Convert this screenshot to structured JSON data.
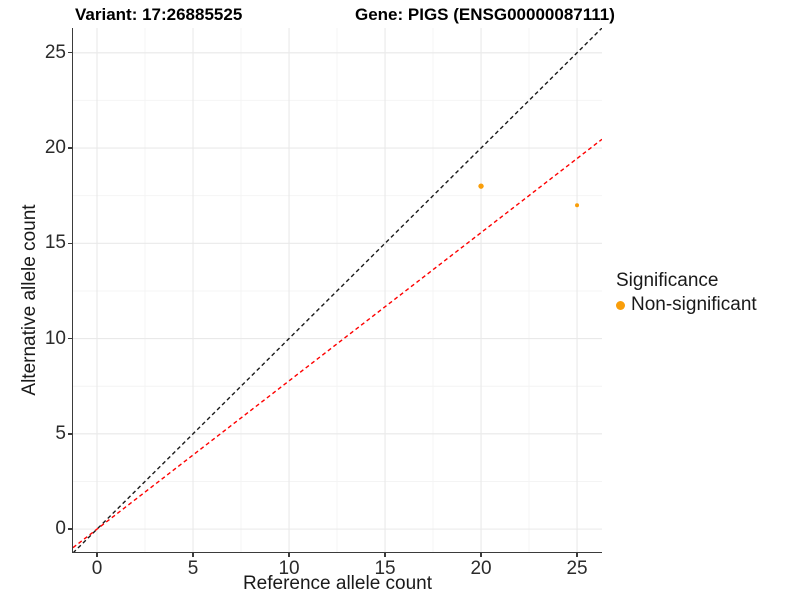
{
  "chart_data": {
    "type": "scatter",
    "title_left": "Variant: 17:26885525",
    "title_right": "Gene: PIGS (ENSG00000087111)",
    "xlabel": "Reference allele count",
    "ylabel": "Alternative allele count",
    "xlim": [
      -1.25,
      26.3
    ],
    "ylim": [
      -1.2,
      26.3
    ],
    "xticks": [
      "0",
      "5",
      "10",
      "15",
      "20",
      "25"
    ],
    "yticks": [
      "0",
      "5",
      "10",
      "15",
      "20",
      "25"
    ],
    "xtick_values": [
      0,
      5,
      10,
      15,
      20,
      25
    ],
    "ytick_values": [
      0,
      5,
      10,
      15,
      20,
      25
    ],
    "minor_tick_values": [
      2.5,
      7.5,
      12.5,
      17.5,
      22.5
    ],
    "grid": "major+minor",
    "points": [
      {
        "x": 20,
        "y": 18,
        "series": "Non-significant",
        "radius_px": 2.7
      },
      {
        "x": 25,
        "y": 17,
        "series": "Non-significant",
        "radius_px": 2.0
      }
    ],
    "reference_lines": [
      {
        "name": "identity",
        "slope": 1,
        "intercept": 0,
        "style": "dashed",
        "color": "#1a1a1a"
      },
      {
        "name": "allelic-ratio-fit",
        "slope": 0.778,
        "intercept": 0,
        "style": "dashed",
        "color": "#fe0000"
      }
    ],
    "legend": {
      "title": "Significance",
      "position": "right",
      "items": [
        {
          "label": "Non-significant",
          "color": "#F99E0A"
        }
      ]
    },
    "colors": {
      "point": "#F99E0A",
      "grid_major": "#e9e9e9",
      "grid_minor": "#f4f4f4",
      "axis": "#3b3b3b",
      "text": "#1a1a1a"
    }
  }
}
